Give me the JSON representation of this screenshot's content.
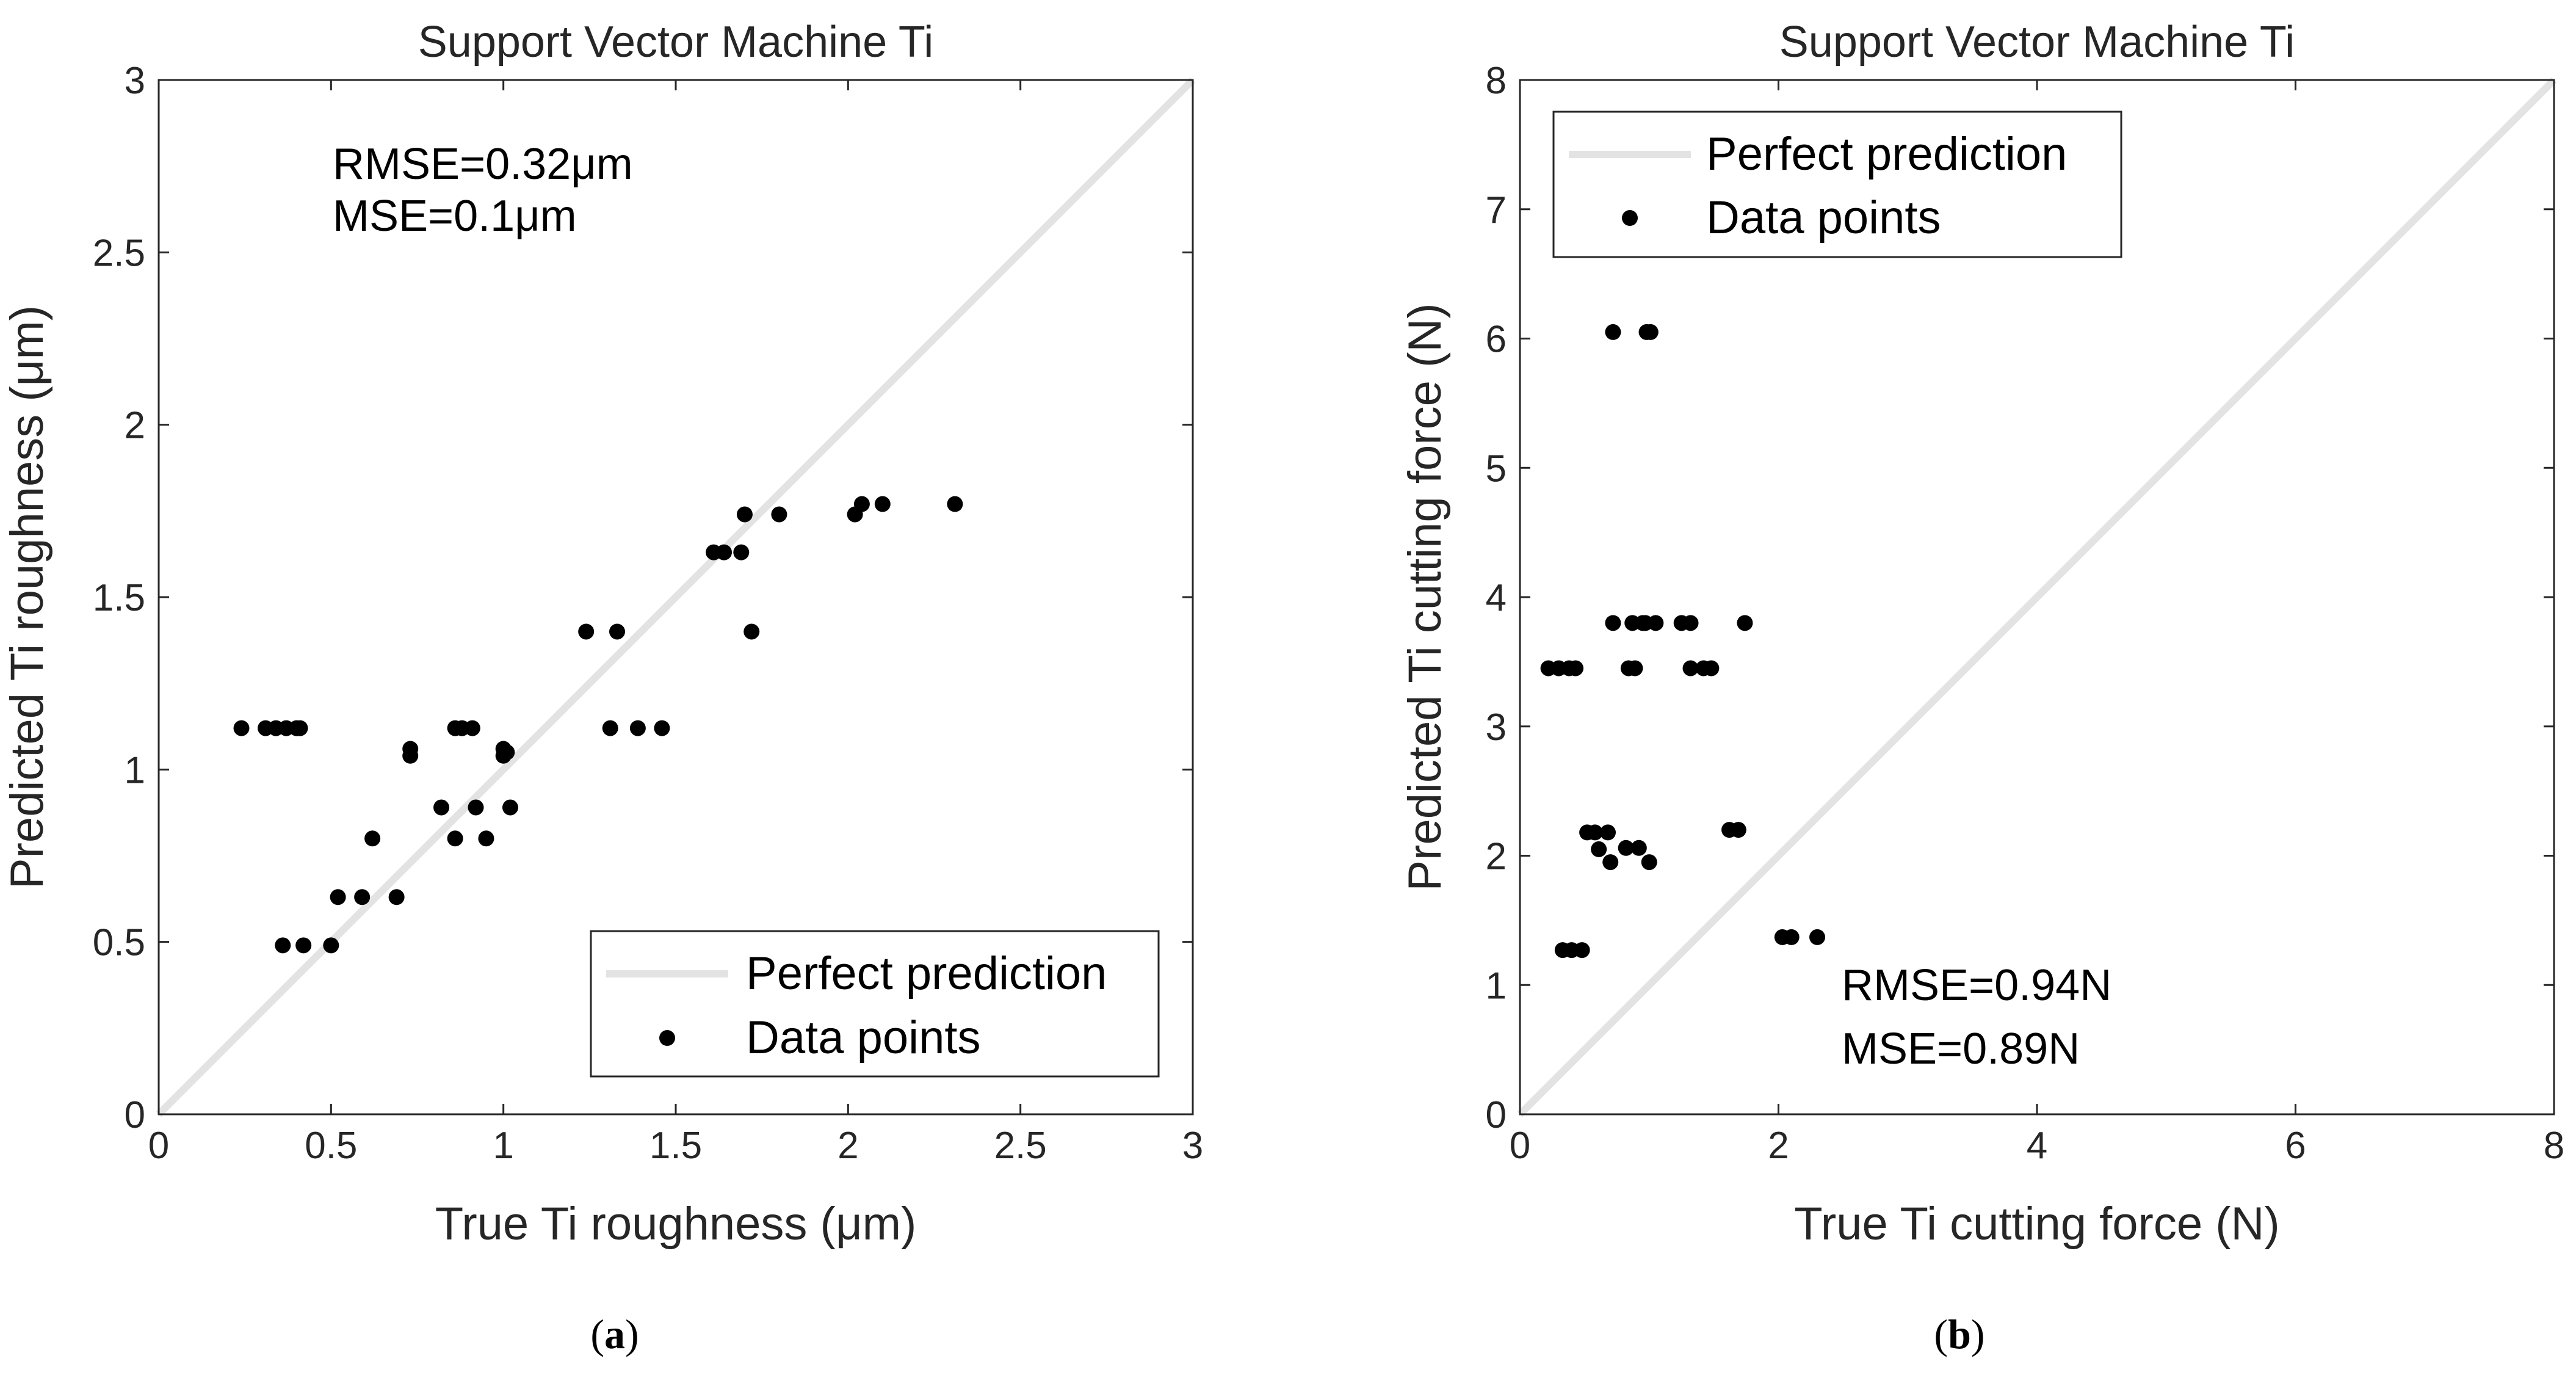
{
  "chart_data": [
    {
      "type": "scatter",
      "title": "Support Vector Machine Ti",
      "xlabel": "True Ti roughness (μm)",
      "ylabel": "Predicted Ti roughness (μm)",
      "xlim": [
        0,
        3
      ],
      "ylim": [
        0,
        3
      ],
      "xticks": [
        "0",
        "0.5",
        "1",
        "1.5",
        "2",
        "2.5",
        "3"
      ],
      "yticks": [
        "0",
        "0.5",
        "1",
        "1.5",
        "2",
        "2.5",
        "3"
      ],
      "annotations": [
        "RMSE=0.32μm",
        "MSE=0.1μm"
      ],
      "legend_position": "bottom-right",
      "caption": {
        "open": "(",
        "letter": "a",
        "close": ")"
      },
      "series": [
        {
          "name": "Perfect prediction",
          "kind": "line",
          "color": "#e3e3e3",
          "x": [
            0,
            3
          ],
          "y": [
            0,
            3
          ]
        },
        {
          "name": "Data points",
          "kind": "points",
          "color": "#000000",
          "x": [
            0.24,
            0.31,
            0.34,
            0.37,
            0.4,
            0.41,
            0.36,
            0.42,
            0.5,
            0.52,
            0.59,
            0.62,
            0.69,
            0.73,
            0.73,
            0.82,
            0.86,
            0.86,
            0.88,
            0.91,
            0.92,
            0.95,
            1.0,
            1.0,
            1.01,
            1.02,
            1.24,
            1.31,
            1.33,
            1.39,
            1.46,
            1.61,
            1.64,
            1.69,
            1.7,
            1.72,
            1.8,
            2.02,
            2.04,
            2.1,
            2.31
          ],
          "y": [
            1.12,
            1.12,
            1.12,
            1.12,
            1.12,
            1.12,
            0.49,
            0.49,
            0.49,
            0.63,
            0.63,
            0.8,
            0.63,
            1.04,
            1.06,
            0.89,
            0.8,
            1.12,
            1.12,
            1.12,
            0.89,
            0.8,
            1.04,
            1.06,
            1.05,
            0.89,
            1.4,
            1.12,
            1.4,
            1.12,
            1.12,
            1.63,
            1.63,
            1.63,
            1.74,
            1.4,
            1.74,
            1.74,
            1.77,
            1.77,
            1.77
          ]
        }
      ]
    },
    {
      "type": "scatter",
      "title": "Support Vector Machine Ti",
      "xlabel": "True Ti cutting force (N)",
      "ylabel": "Predicted Ti cutting force (N)",
      "xlim": [
        0,
        8
      ],
      "ylim": [
        0,
        8
      ],
      "xticks": [
        "0",
        "2",
        "4",
        "6",
        "8"
      ],
      "yticks": [
        "0",
        "1",
        "2",
        "3",
        "4",
        "5",
        "6",
        "7",
        "8"
      ],
      "annotations": [
        "RMSE=0.94N",
        "MSE=0.89N"
      ],
      "legend_position": "top-left",
      "caption": {
        "open": "(",
        "letter": "b",
        "close": ")"
      },
      "series": [
        {
          "name": "Perfect prediction",
          "kind": "line",
          "color": "#e3e3e3",
          "x": [
            0,
            8
          ],
          "y": [
            0,
            8
          ]
        },
        {
          "name": "Data points",
          "kind": "points",
          "color": "#000000",
          "x": [
            0.22,
            0.3,
            0.38,
            0.43,
            0.33,
            0.4,
            0.48,
            0.52,
            0.58,
            0.61,
            0.68,
            0.7,
            0.72,
            0.82,
            0.87,
            0.92,
            0.97,
            0.84,
            0.89,
            0.95,
            1.0,
            1.05,
            1.25,
            1.32,
            1.32,
            1.42,
            1.48,
            1.62,
            1.69,
            1.74,
            2.03,
            2.1,
            2.3,
            0.72,
            0.98,
            1.01
          ],
          "y": [
            3.45,
            3.45,
            3.45,
            3.45,
            1.27,
            1.27,
            1.27,
            2.18,
            2.18,
            2.05,
            2.18,
            1.95,
            3.8,
            2.06,
            3.8,
            2.06,
            3.8,
            3.45,
            3.45,
            3.8,
            1.95,
            3.8,
            3.8,
            3.8,
            3.45,
            3.45,
            3.45,
            2.2,
            2.2,
            3.8,
            1.37,
            1.37,
            1.37,
            6.05,
            6.05,
            6.05
          ]
        }
      ]
    }
  ]
}
